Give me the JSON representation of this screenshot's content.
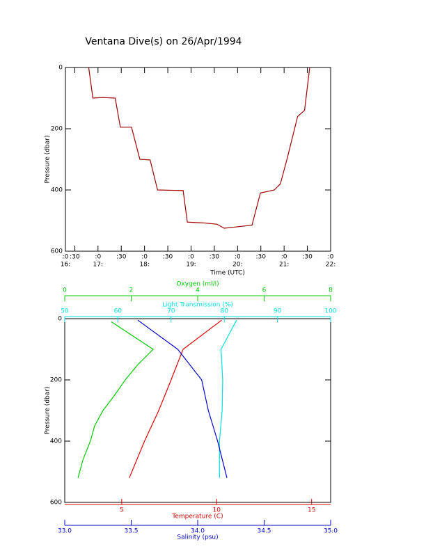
{
  "chart_data": [
    {
      "type": "line",
      "title": "Ventana Dive(s) on 26/Apr/1994",
      "xlabel": "Time (UTC)",
      "ylabel": "Pressure (dbar)",
      "xlim": [
        16.3,
        22.0
      ],
      "ylim": [
        0,
        600
      ],
      "y_inverted": true,
      "xticks": [
        {
          "value": 16.3,
          "label": ":0"
        },
        {
          "value": 16.5,
          "label": ":30"
        },
        {
          "value": 17,
          "label": ":0"
        },
        {
          "value": 17.5,
          "label": ":30"
        },
        {
          "value": 18,
          "label": ":0"
        },
        {
          "value": 18.5,
          "label": ":30"
        },
        {
          "value": 19,
          "label": ":0"
        },
        {
          "value": 19.5,
          "label": ":30"
        },
        {
          "value": 20,
          "label": ":0"
        },
        {
          "value": 20.5,
          "label": ":30"
        },
        {
          "value": 21,
          "label": ":0"
        },
        {
          "value": 21.5,
          "label": ":30"
        },
        {
          "value": 22,
          "label": ":0"
        }
      ],
      "xticks_hour": [
        {
          "value": 16.3,
          "label": "16:"
        },
        {
          "value": 17,
          "label": "17:"
        },
        {
          "value": 18,
          "label": "18:"
        },
        {
          "value": 19,
          "label": "19:"
        },
        {
          "value": 20,
          "label": "20:"
        },
        {
          "value": 21,
          "label": "21:"
        },
        {
          "value": 22,
          "label": "22:"
        }
      ],
      "yticks": [
        0,
        200,
        400,
        600
      ],
      "series": [
        {
          "color": "#a00000",
          "x": [
            16.8,
            16.89,
            17.1,
            17.37,
            17.48,
            17.72,
            17.9,
            18.12,
            18.28,
            18.83,
            18.92,
            19.3,
            19.56,
            19.71,
            20.01,
            20.31,
            20.49,
            20.79,
            20.92,
            21.07,
            21.29,
            21.44,
            21.55
          ],
          "y": [
            0,
            100,
            98,
            100,
            195,
            195,
            300,
            302,
            400,
            402,
            505,
            508,
            512,
            525,
            520,
            515,
            410,
            400,
            380,
            295,
            160,
            140,
            0
          ]
        }
      ]
    },
    {
      "type": "profile",
      "ylabel": "Pressure (dbar)",
      "ylim": [
        0,
        600
      ],
      "y_inverted": true,
      "yticks": [
        0,
        200,
        400,
        600
      ],
      "x_axes": [
        {
          "label": "Oxygen (ml/l)",
          "color": "#00cc00",
          "xlim": [
            0,
            8
          ],
          "xticks": [
            0,
            2,
            4,
            6,
            8
          ]
        },
        {
          "label": "Light Transmission (%)",
          "color": "#00e0e0",
          "xlim": [
            50,
            100
          ],
          "xticks": [
            50,
            60,
            70,
            80,
            90,
            100
          ]
        },
        {
          "label": "Temperature (C)",
          "color": "#dd0000",
          "xlim": [
            2,
            16
          ],
          "xticks": [
            5,
            10,
            15
          ]
        },
        {
          "label": "Salinity (psu)",
          "color": "#0000cc",
          "xlim": [
            33.0,
            35.0
          ],
          "xticks": [
            {
              "value": 33.0,
              "label": "33.0"
            },
            {
              "value": 33.5,
              "label": "33.5"
            },
            {
              "value": 34.0,
              "label": "34.0"
            },
            {
              "value": 34.5,
              "label": "34.5"
            },
            {
              "value": 35.0,
              "label": "35.0"
            }
          ]
        }
      ],
      "series": [
        {
          "axis": 0,
          "color": "#00cc00",
          "x": [
            1.4,
            2.66,
            2.2,
            1.82,
            1.5,
            1.15,
            0.9,
            0.77,
            0.55,
            0.4
          ],
          "y": [
            10,
            100,
            150,
            200,
            250,
            300,
            350,
            400,
            460,
            520
          ]
        },
        {
          "axis": 1,
          "color": "#00e0e0",
          "x": [
            82.3,
            79.4,
            79.7,
            79.6,
            79.1,
            79.1
          ],
          "y": [
            5,
            100,
            200,
            300,
            400,
            520
          ]
        },
        {
          "axis": 2,
          "color": "#dd0000",
          "x": [
            10.26,
            8.23,
            7.6,
            6.95,
            6.2,
            5.4
          ],
          "y": [
            5,
            100,
            200,
            300,
            400,
            520
          ]
        },
        {
          "axis": 3,
          "color": "#0000cc",
          "x": [
            33.55,
            33.85,
            34.03,
            34.08,
            34.15,
            34.22
          ],
          "y": [
            5,
            100,
            200,
            300,
            400,
            520
          ]
        }
      ]
    }
  ]
}
